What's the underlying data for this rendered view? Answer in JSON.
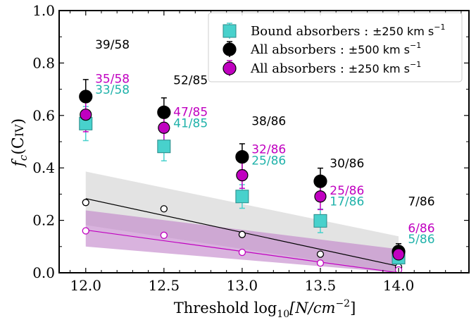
{
  "chart_data": {
    "type": "scatter",
    "xlabel_prefix": "Threshold log",
    "xlabel_sub": "10",
    "xlabel_bracket": "[N/cm",
    "xlabel_sup": "−2",
    "xlabel_close": "]",
    "ylabel_main": "f",
    "ylabel_sub": "c",
    "ylabel_paren": "(C",
    "ylabel_ion": "IV",
    "ylabel_close": ")",
    "xlim": [
      11.83,
      14.45
    ],
    "ylim": [
      0.0,
      1.0
    ],
    "xticks": [
      12.0,
      12.5,
      13.0,
      13.5,
      14.0
    ],
    "xtick_labels": [
      "12.0",
      "12.5",
      "13.0",
      "13.5",
      "14.0"
    ],
    "yticks": [
      0.0,
      0.2,
      0.4,
      0.6,
      0.8,
      1.0
    ],
    "ytick_labels": [
      "0.0",
      "0.2",
      "0.4",
      "0.6",
      "0.8",
      "1.0"
    ],
    "x": [
      12.0,
      12.5,
      13.0,
      13.5,
      14.0
    ],
    "series": [
      {
        "name": "Bound absorbers : ±250 km s⁻¹",
        "legend_text": "Bound absorbers : ",
        "legend_vel": "±250 km s",
        "legend_sup": "−1",
        "marker": "square",
        "color": "#48d1cc",
        "values": [
          0.569,
          0.482,
          0.291,
          0.198,
          0.058
        ],
        "err_lo": [
          0.065,
          0.055,
          0.045,
          0.045,
          0.025
        ],
        "err_hi": [
          0.065,
          0.055,
          0.045,
          0.045,
          0.025
        ]
      },
      {
        "name": "All absorbers : ±500 km s⁻¹",
        "legend_text": "All absorbers : ",
        "legend_vel": "±500 km s",
        "legend_sup": "−1",
        "marker": "circle",
        "color": "#000000",
        "values": [
          0.672,
          0.612,
          0.442,
          0.349,
          0.081
        ],
        "err_lo": [
          0.065,
          0.055,
          0.05,
          0.05,
          0.03
        ],
        "err_hi": [
          0.065,
          0.055,
          0.05,
          0.05,
          0.03
        ]
      },
      {
        "name": "All absorbers : ±250 km s⁻¹",
        "legend_text": "All absorbers : ",
        "legend_vel": "±250 km s",
        "legend_sup": "−1",
        "marker": "circle",
        "color": "#c000c0",
        "values": [
          0.603,
          0.553,
          0.372,
          0.291,
          0.07
        ],
        "err_lo": [
          0.065,
          0.055,
          0.05,
          0.05,
          0.03
        ],
        "err_hi": [
          0.065,
          0.055,
          0.05,
          0.05,
          0.03
        ]
      }
    ],
    "random_points": [
      {
        "color": "#000000",
        "values": [
          0.268,
          0.244,
          0.146,
          0.071,
          0.022
        ]
      },
      {
        "color": "#c000c0",
        "values": [
          0.16,
          0.143,
          0.078,
          0.037,
          0.011
        ]
      }
    ],
    "bands": [
      {
        "color": "#d0d0d0",
        "x": [
          12.0,
          14.0
        ],
        "lower": [
          0.182,
          0.0
        ],
        "upper": [
          0.386,
          0.139
        ]
      },
      {
        "color": "#c080c8",
        "x": [
          12.0,
          14.0
        ],
        "lower": [
          0.1,
          0.0
        ],
        "upper": [
          0.238,
          0.09
        ]
      },
      {
        "color": "#e89ae8",
        "x": [
          12.0,
          14.0
        ],
        "lower": [
          0.1,
          0.0
        ],
        "upper": [
          0.1,
          0.0
        ]
      }
    ],
    "fit_lines": [
      {
        "color": "#000000",
        "x": [
          12.0,
          14.0
        ],
        "y": [
          0.283,
          0.025
        ]
      },
      {
        "color": "#c000c0",
        "x": [
          12.0,
          14.0
        ],
        "y": [
          0.163,
          0.0
        ]
      }
    ],
    "annotations": [
      {
        "text": "39/58",
        "x": 12.06,
        "y": 0.855,
        "color": "#000000"
      },
      {
        "text": "35/58",
        "x": 12.06,
        "y": 0.725,
        "color": "#c000c0"
      },
      {
        "text": "33/58",
        "x": 12.06,
        "y": 0.683,
        "color": "#20b2aa"
      },
      {
        "text": "52/85",
        "x": 12.56,
        "y": 0.719,
        "color": "#000000"
      },
      {
        "text": "47/85",
        "x": 12.56,
        "y": 0.598,
        "color": "#c000c0"
      },
      {
        "text": "41/85",
        "x": 12.56,
        "y": 0.555,
        "color": "#20b2aa"
      },
      {
        "text": "38/86",
        "x": 13.06,
        "y": 0.563,
        "color": "#000000"
      },
      {
        "text": "32/86",
        "x": 13.06,
        "y": 0.455,
        "color": "#c000c0"
      },
      {
        "text": "25/86",
        "x": 13.06,
        "y": 0.413,
        "color": "#20b2aa"
      },
      {
        "text": "30/86",
        "x": 13.56,
        "y": 0.402,
        "color": "#000000"
      },
      {
        "text": "25/86",
        "x": 13.56,
        "y": 0.299,
        "color": "#c000c0"
      },
      {
        "text": "17/86",
        "x": 13.56,
        "y": 0.257,
        "color": "#20b2aa"
      },
      {
        "text": "7/86",
        "x": 14.06,
        "y": 0.257,
        "color": "#000000"
      },
      {
        "text": "6/86",
        "x": 14.06,
        "y": 0.155,
        "color": "#c000c0"
      },
      {
        "text": "5/86",
        "x": 14.06,
        "y": 0.113,
        "color": "#20b2aa"
      }
    ],
    "legend_position": "top-right",
    "grid": false
  }
}
